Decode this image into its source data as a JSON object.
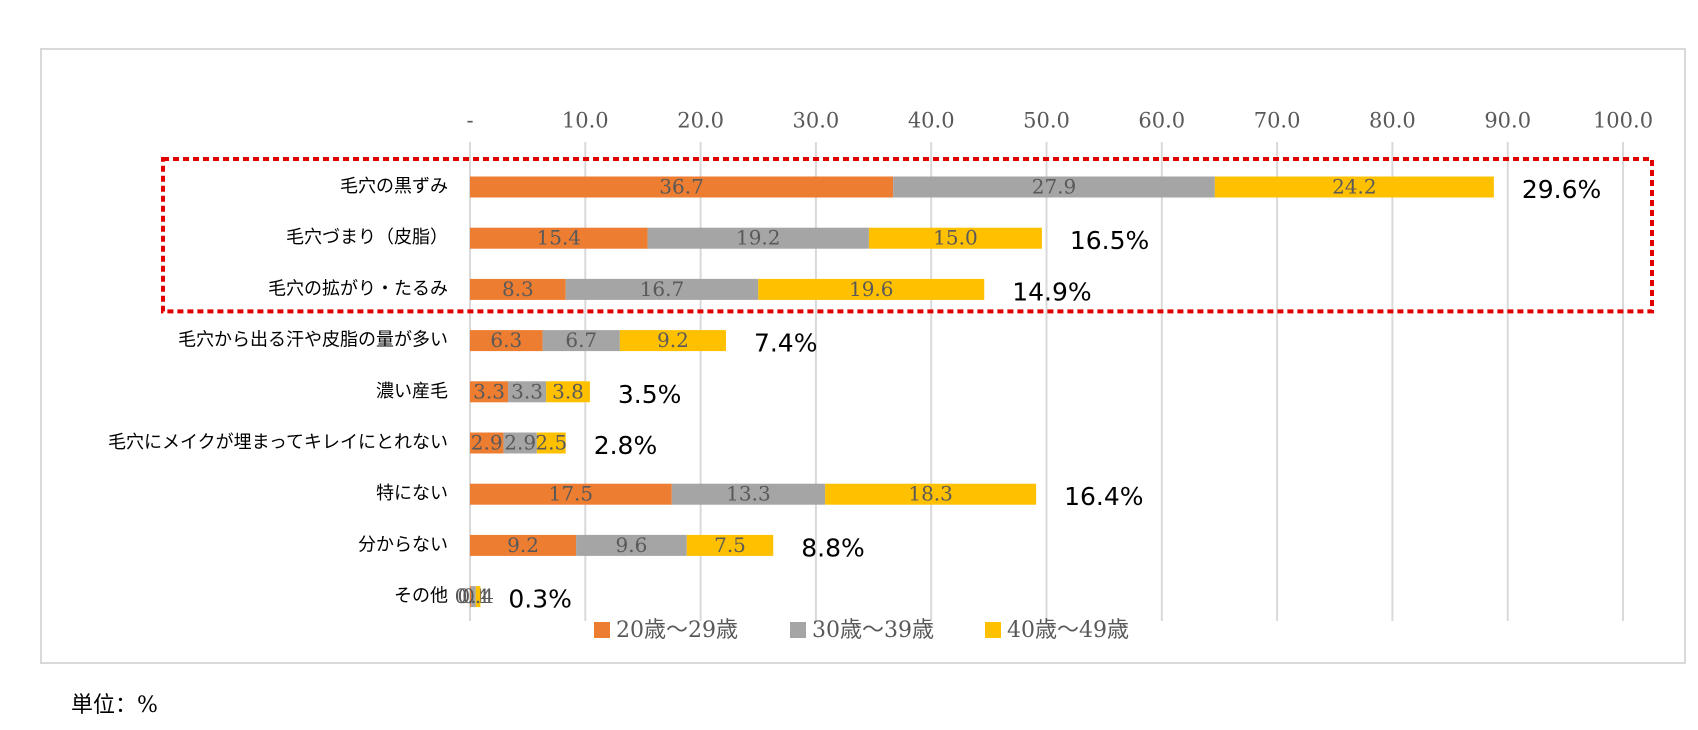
{
  "chart_data": {
    "type": "stacked-bar-horizontal",
    "categories": [
      "毛穴の黒ずみ",
      "毛穴づまり（皮脂）",
      "毛穴の拡がり・たるみ",
      "毛穴から出る汗や皮脂の量が多い",
      "濃い産毛",
      "毛穴にメイクが埋まってキレイにとれない",
      "特にない",
      "分からない",
      "その他"
    ],
    "series": [
      {
        "name": "20歳～29歳",
        "color": "#ED7D31",
        "values": [
          36.7,
          15.4,
          8.3,
          6.3,
          3.3,
          2.9,
          17.5,
          9.2,
          0.1
        ],
        "value_labels": [
          "36.7",
          "15.4",
          "8.3",
          "6.3",
          "3.3",
          "2.9",
          "17.5",
          "9.2",
          "0.1"
        ]
      },
      {
        "name": "30歳～39歳",
        "color": "#A5A5A5",
        "values": [
          27.9,
          19.2,
          16.7,
          6.7,
          3.3,
          2.9,
          13.3,
          9.6,
          0.4
        ],
        "value_labels": [
          "27.9",
          "19.2",
          "16.7",
          "6.7",
          "3.3",
          "2.9",
          "13.3",
          "9.6",
          "0.4"
        ]
      },
      {
        "name": "40歳～49歳",
        "color": "#FFC000",
        "values": [
          24.2,
          15.0,
          19.6,
          9.2,
          3.8,
          2.5,
          18.3,
          7.5,
          0.4
        ],
        "value_labels": [
          "24.2",
          "15.0",
          "19.6",
          "9.2",
          "3.8",
          "2.5",
          "18.3",
          "7.5",
          "0.4"
        ]
      }
    ],
    "averages": [
      29.6,
      16.5,
      14.9,
      7.4,
      3.5,
      2.8,
      16.4,
      8.8,
      0.3
    ],
    "average_labels": [
      "29.6%",
      "16.5%",
      "14.9%",
      "7.4%",
      "3.5%",
      "2.8%",
      "16.4%",
      "8.8%",
      "0.3%"
    ],
    "xlim": [
      0,
      100
    ],
    "xticks": [
      {
        "value": 0,
        "label": "-"
      },
      {
        "value": 10,
        "label": "10.0"
      },
      {
        "value": 20,
        "label": "20.0"
      },
      {
        "value": 30,
        "label": "30.0"
      },
      {
        "value": 40,
        "label": "40.0"
      },
      {
        "value": 50,
        "label": "50.0"
      },
      {
        "value": 60,
        "label": "60.0"
      },
      {
        "value": 70,
        "label": "70.0"
      },
      {
        "value": 80,
        "label": "80.0"
      },
      {
        "value": 90,
        "label": "90.0"
      },
      {
        "value": 100,
        "label": "100.0"
      }
    ],
    "grid": true,
    "legend": "bottom",
    "highlight_rows": 3,
    "footnote": "単位：%"
  }
}
